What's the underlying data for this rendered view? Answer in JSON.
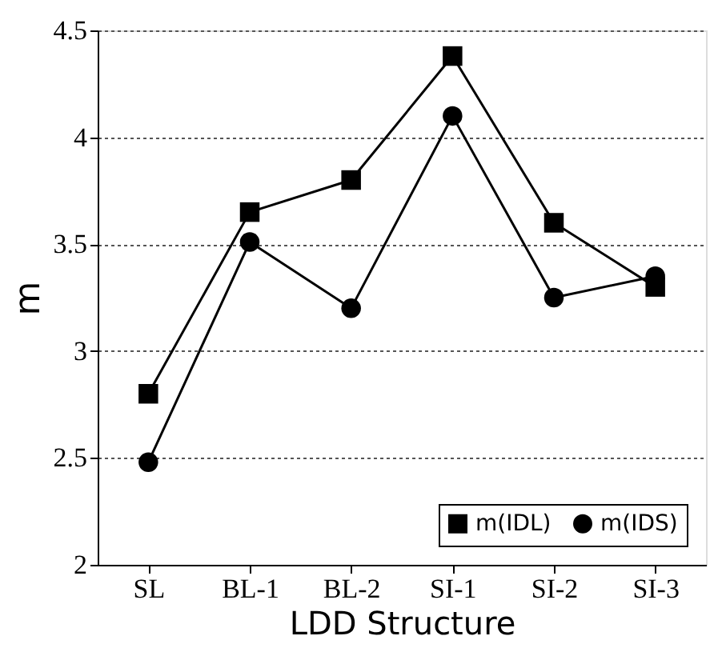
{
  "chart_data": {
    "type": "line",
    "xlabel": "LDD Structure",
    "ylabel": "m",
    "categories": [
      "SL",
      "BL-1",
      "BL-2",
      "SI-1",
      "SI-2",
      "SI-3"
    ],
    "series": [
      {
        "name": "m(IDL)",
        "color": "#000000",
        "marker": "square",
        "values": [
          2.8,
          3.65,
          3.8,
          4.38,
          3.6,
          3.3
        ]
      },
      {
        "name": "m(IDS)",
        "color": "#000000",
        "marker": "circle",
        "values": [
          2.48,
          3.51,
          3.2,
          4.1,
          3.25,
          3.35
        ]
      }
    ],
    "ylim": [
      2,
      4.5
    ],
    "yticks": [
      2,
      2.5,
      3,
      3.5,
      4,
      4.5
    ],
    "grid": "y",
    "legend": "bottom right",
    "line_style": "solid"
  }
}
